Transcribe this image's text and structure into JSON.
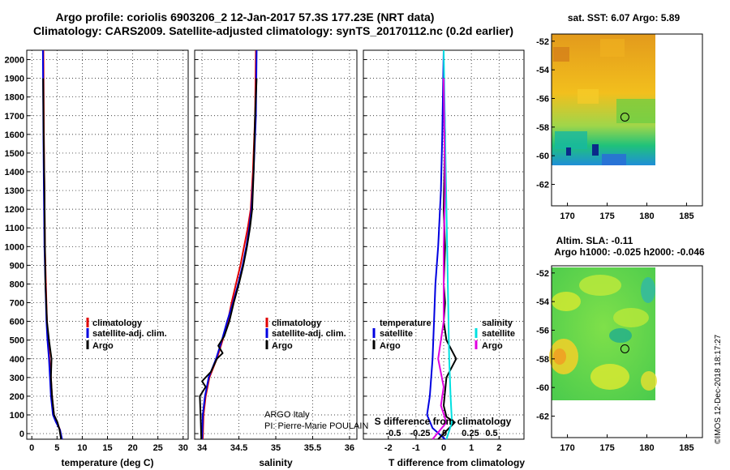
{
  "title_line1": "Argo profile: coriolis 6903206_2 12-Jan-2017 57.3S 177.23E (NRT data)",
  "title_line2": "Climatology: CARS2009. Satellite-adjusted climatology: synTS_20170112.nc (0.2d earlier)",
  "timestamp": "©IMOS 12-Dec-2018 18:17:27",
  "credit_line1": "ARGO Italy",
  "credit_line2": "PI: Pierre-Marie POULAIN",
  "colors": {
    "red": "#e00000",
    "blue": "#0000e0",
    "black": "#000000",
    "cyan": "#00e0e0",
    "magenta": "#e000e0"
  },
  "chart_data": [
    {
      "type": "line",
      "id": "temperature",
      "xlabel": "temperature (deg C)",
      "xlim": [
        -1,
        31
      ],
      "xticks": [
        "0",
        "5",
        "10",
        "15",
        "20",
        "25",
        "30"
      ],
      "ylim": [
        0,
        2050
      ],
      "yticks": [
        "0",
        "100",
        "200",
        "300",
        "400",
        "500",
        "600",
        "700",
        "800",
        "900",
        "1000",
        "1100",
        "1200",
        "1300",
        "1400",
        "1500",
        "1600",
        "1700",
        "1800",
        "1900",
        "2000"
      ],
      "legend": [
        "climatology",
        "satellite-adj. clim.",
        "Argo"
      ],
      "series": [
        {
          "name": "climatology",
          "color": "#e00000",
          "points": [
            [
              5.9,
              -30
            ],
            [
              5.6,
              20
            ],
            [
              5.0,
              60
            ],
            [
              4.4,
              100
            ],
            [
              4.0,
              200
            ],
            [
              3.8,
              300
            ],
            [
              3.5,
              400
            ],
            [
              3.2,
              500
            ],
            [
              3.0,
              600
            ],
            [
              2.8,
              800
            ],
            [
              2.6,
              1000
            ],
            [
              2.5,
              1300
            ],
            [
              2.4,
              1600
            ],
            [
              2.3,
              2050
            ]
          ]
        },
        {
          "name": "satellite-adj. clim.",
          "color": "#0000e0",
          "points": [
            [
              6.0,
              -30
            ],
            [
              5.6,
              20
            ],
            [
              4.8,
              60
            ],
            [
              4.2,
              100
            ],
            [
              3.8,
              200
            ],
            [
              3.6,
              300
            ],
            [
              3.4,
              400
            ],
            [
              3.1,
              500
            ],
            [
              2.9,
              600
            ],
            [
              2.7,
              800
            ],
            [
              2.5,
              1000
            ],
            [
              2.4,
              1300
            ],
            [
              2.3,
              1600
            ],
            [
              2.2,
              2050
            ]
          ]
        },
        {
          "name": "Argo",
          "color": "#000000",
          "points": [
            [
              5.8,
              -30
            ],
            [
              5.5,
              20
            ],
            [
              5.1,
              60
            ],
            [
              4.4,
              100
            ],
            [
              4.0,
              200
            ],
            [
              3.8,
              300
            ],
            [
              3.9,
              400
            ],
            [
              3.4,
              500
            ],
            [
              3.0,
              600
            ],
            [
              2.7,
              800
            ],
            [
              2.6,
              1000
            ],
            [
              2.5,
              1300
            ],
            [
              2.35,
              1600
            ],
            [
              2.25,
              1900
            ]
          ]
        }
      ]
    },
    {
      "type": "line",
      "id": "salinity",
      "xlabel": "salinity",
      "xlim": [
        33.9,
        36.1
      ],
      "xticks": [
        "34",
        "34.5",
        "35",
        "35.5",
        "36"
      ],
      "ylim": [
        0,
        2050
      ],
      "legend": [
        "climatology",
        "satellite-adj. clim.",
        "Argo"
      ],
      "series": [
        {
          "name": "climatology",
          "color": "#e00000",
          "points": [
            [
              34.01,
              -30
            ],
            [
              34.02,
              100
            ],
            [
              34.05,
              200
            ],
            [
              34.1,
              300
            ],
            [
              34.2,
              400
            ],
            [
              34.28,
              500
            ],
            [
              34.35,
              600
            ],
            [
              34.4,
              700
            ],
            [
              34.46,
              800
            ],
            [
              34.52,
              900
            ],
            [
              34.57,
              1000
            ],
            [
              34.62,
              1100
            ],
            [
              34.66,
              1200
            ],
            [
              34.69,
              1400
            ],
            [
              34.72,
              1700
            ],
            [
              34.73,
              2050
            ]
          ]
        },
        {
          "name": "satellite-adj. clim.",
          "color": "#0000e0",
          "points": [
            [
              34.0,
              -30
            ],
            [
              34.01,
              100
            ],
            [
              34.04,
              200
            ],
            [
              34.09,
              300
            ],
            [
              34.19,
              400
            ],
            [
              34.27,
              500
            ],
            [
              34.34,
              600
            ],
            [
              34.42,
              700
            ],
            [
              34.49,
              800
            ],
            [
              34.55,
              900
            ],
            [
              34.6,
              1000
            ],
            [
              34.64,
              1100
            ],
            [
              34.67,
              1200
            ],
            [
              34.7,
              1400
            ],
            [
              34.73,
              1700
            ],
            [
              34.74,
              2050
            ]
          ]
        },
        {
          "name": "Argo",
          "color": "#000000",
          "points": [
            [
              33.99,
              -30
            ],
            [
              33.98,
              100
            ],
            [
              33.97,
              200
            ],
            [
              34.05,
              250
            ],
            [
              34.0,
              280
            ],
            [
              34.12,
              330
            ],
            [
              34.2,
              400
            ],
            [
              34.28,
              430
            ],
            [
              34.22,
              470
            ],
            [
              34.3,
              520
            ],
            [
              34.37,
              600
            ],
            [
              34.43,
              700
            ],
            [
              34.5,
              800
            ],
            [
              34.56,
              900
            ],
            [
              34.61,
              1000
            ],
            [
              34.65,
              1100
            ],
            [
              34.68,
              1200
            ],
            [
              34.7,
              1400
            ],
            [
              34.72,
              1700
            ],
            [
              34.74,
              1900
            ]
          ]
        }
      ]
    },
    {
      "type": "line",
      "id": "difference",
      "xlabel": "T difference from climatology",
      "top_label": "S difference from climatology",
      "xlim": [
        -2.9,
        2.9
      ],
      "xticks": [
        "-2",
        "-1",
        "0",
        "1",
        "2"
      ],
      "top_ticks": [
        "-0.5",
        "-0.25",
        "0",
        "0.25",
        "0.5"
      ],
      "ylim": [
        0,
        2050
      ],
      "legend_left_title": "temperature",
      "legend_right_title": "salinity",
      "legend": [
        "satellite",
        "Argo",
        "satellite",
        "Argo"
      ],
      "series": [
        {
          "name": "satellite",
          "quantity": "temperature",
          "color": "#0000e0",
          "points": [
            [
              0.05,
              -30
            ],
            [
              -0.4,
              30
            ],
            [
              -0.6,
              100
            ],
            [
              -0.5,
              200
            ],
            [
              -0.45,
              300
            ],
            [
              -0.4,
              400
            ],
            [
              -0.35,
              600
            ],
            [
              -0.3,
              800
            ],
            [
              -0.2,
              1000
            ],
            [
              -0.1,
              1300
            ],
            [
              -0.05,
              1600
            ],
            [
              0,
              2050
            ]
          ]
        },
        {
          "name": "Argo",
          "quantity": "temperature",
          "color": "#000000",
          "points": [
            [
              -0.2,
              -30
            ],
            [
              0.2,
              30
            ],
            [
              0.4,
              60
            ],
            [
              0.1,
              90
            ],
            [
              0.0,
              150
            ],
            [
              0.1,
              300
            ],
            [
              0.45,
              400
            ],
            [
              0.1,
              500
            ],
            [
              0.0,
              600
            ],
            [
              0.05,
              700
            ],
            [
              0.0,
              800
            ],
            [
              0.05,
              1000
            ],
            [
              0.0,
              1200
            ],
            [
              0.05,
              1600
            ],
            [
              0.0,
              1900
            ]
          ]
        },
        {
          "name": "satellite",
          "quantity": "salinity",
          "color": "#00e0e0",
          "points": [
            [
              0.1,
              -30
            ],
            [
              0.3,
              60
            ],
            [
              0.25,
              200
            ],
            [
              0.2,
              400
            ],
            [
              0.15,
              800
            ],
            [
              0.1,
              1200
            ],
            [
              0.05,
              1600
            ],
            [
              0.0,
              2050
            ]
          ]
        },
        {
          "name": "Argo",
          "quantity": "salinity",
          "color": "#e000e0",
          "points": [
            [
              -0.4,
              -30
            ],
            [
              0.1,
              60
            ],
            [
              -0.1,
              150
            ],
            [
              0.0,
              250
            ],
            [
              -0.2,
              400
            ],
            [
              0.0,
              600
            ],
            [
              0.0,
              1000
            ],
            [
              0.05,
              1300
            ],
            [
              0.0,
              1900
            ]
          ]
        }
      ]
    },
    {
      "type": "heatmap",
      "id": "sst_map",
      "title": "sat. SST: 6.07 Argo: 5.89",
      "xlim": [
        168,
        187
      ],
      "ylim": [
        -63.5,
        -51.5
      ],
      "xticks": [
        "170",
        "175",
        "180",
        "185"
      ],
      "yticks": [
        "-52",
        "-54",
        "-56",
        "-58",
        "-60",
        "-62"
      ],
      "marker": {
        "lon": 177.23,
        "lat": -57.3
      }
    },
    {
      "type": "heatmap",
      "id": "sla_map",
      "title_line1": "Altim. SLA: -0.11",
      "title_line2": "Argo h1000: -0.025 h2000: -0.046",
      "xlim": [
        168,
        187
      ],
      "ylim": [
        -63.5,
        -51.5
      ],
      "xticks": [
        "170",
        "175",
        "180",
        "185"
      ],
      "yticks": [
        "-52",
        "-54",
        "-56",
        "-58",
        "-60",
        "-62"
      ],
      "marker": {
        "lon": 177.23,
        "lat": -57.3
      }
    }
  ]
}
